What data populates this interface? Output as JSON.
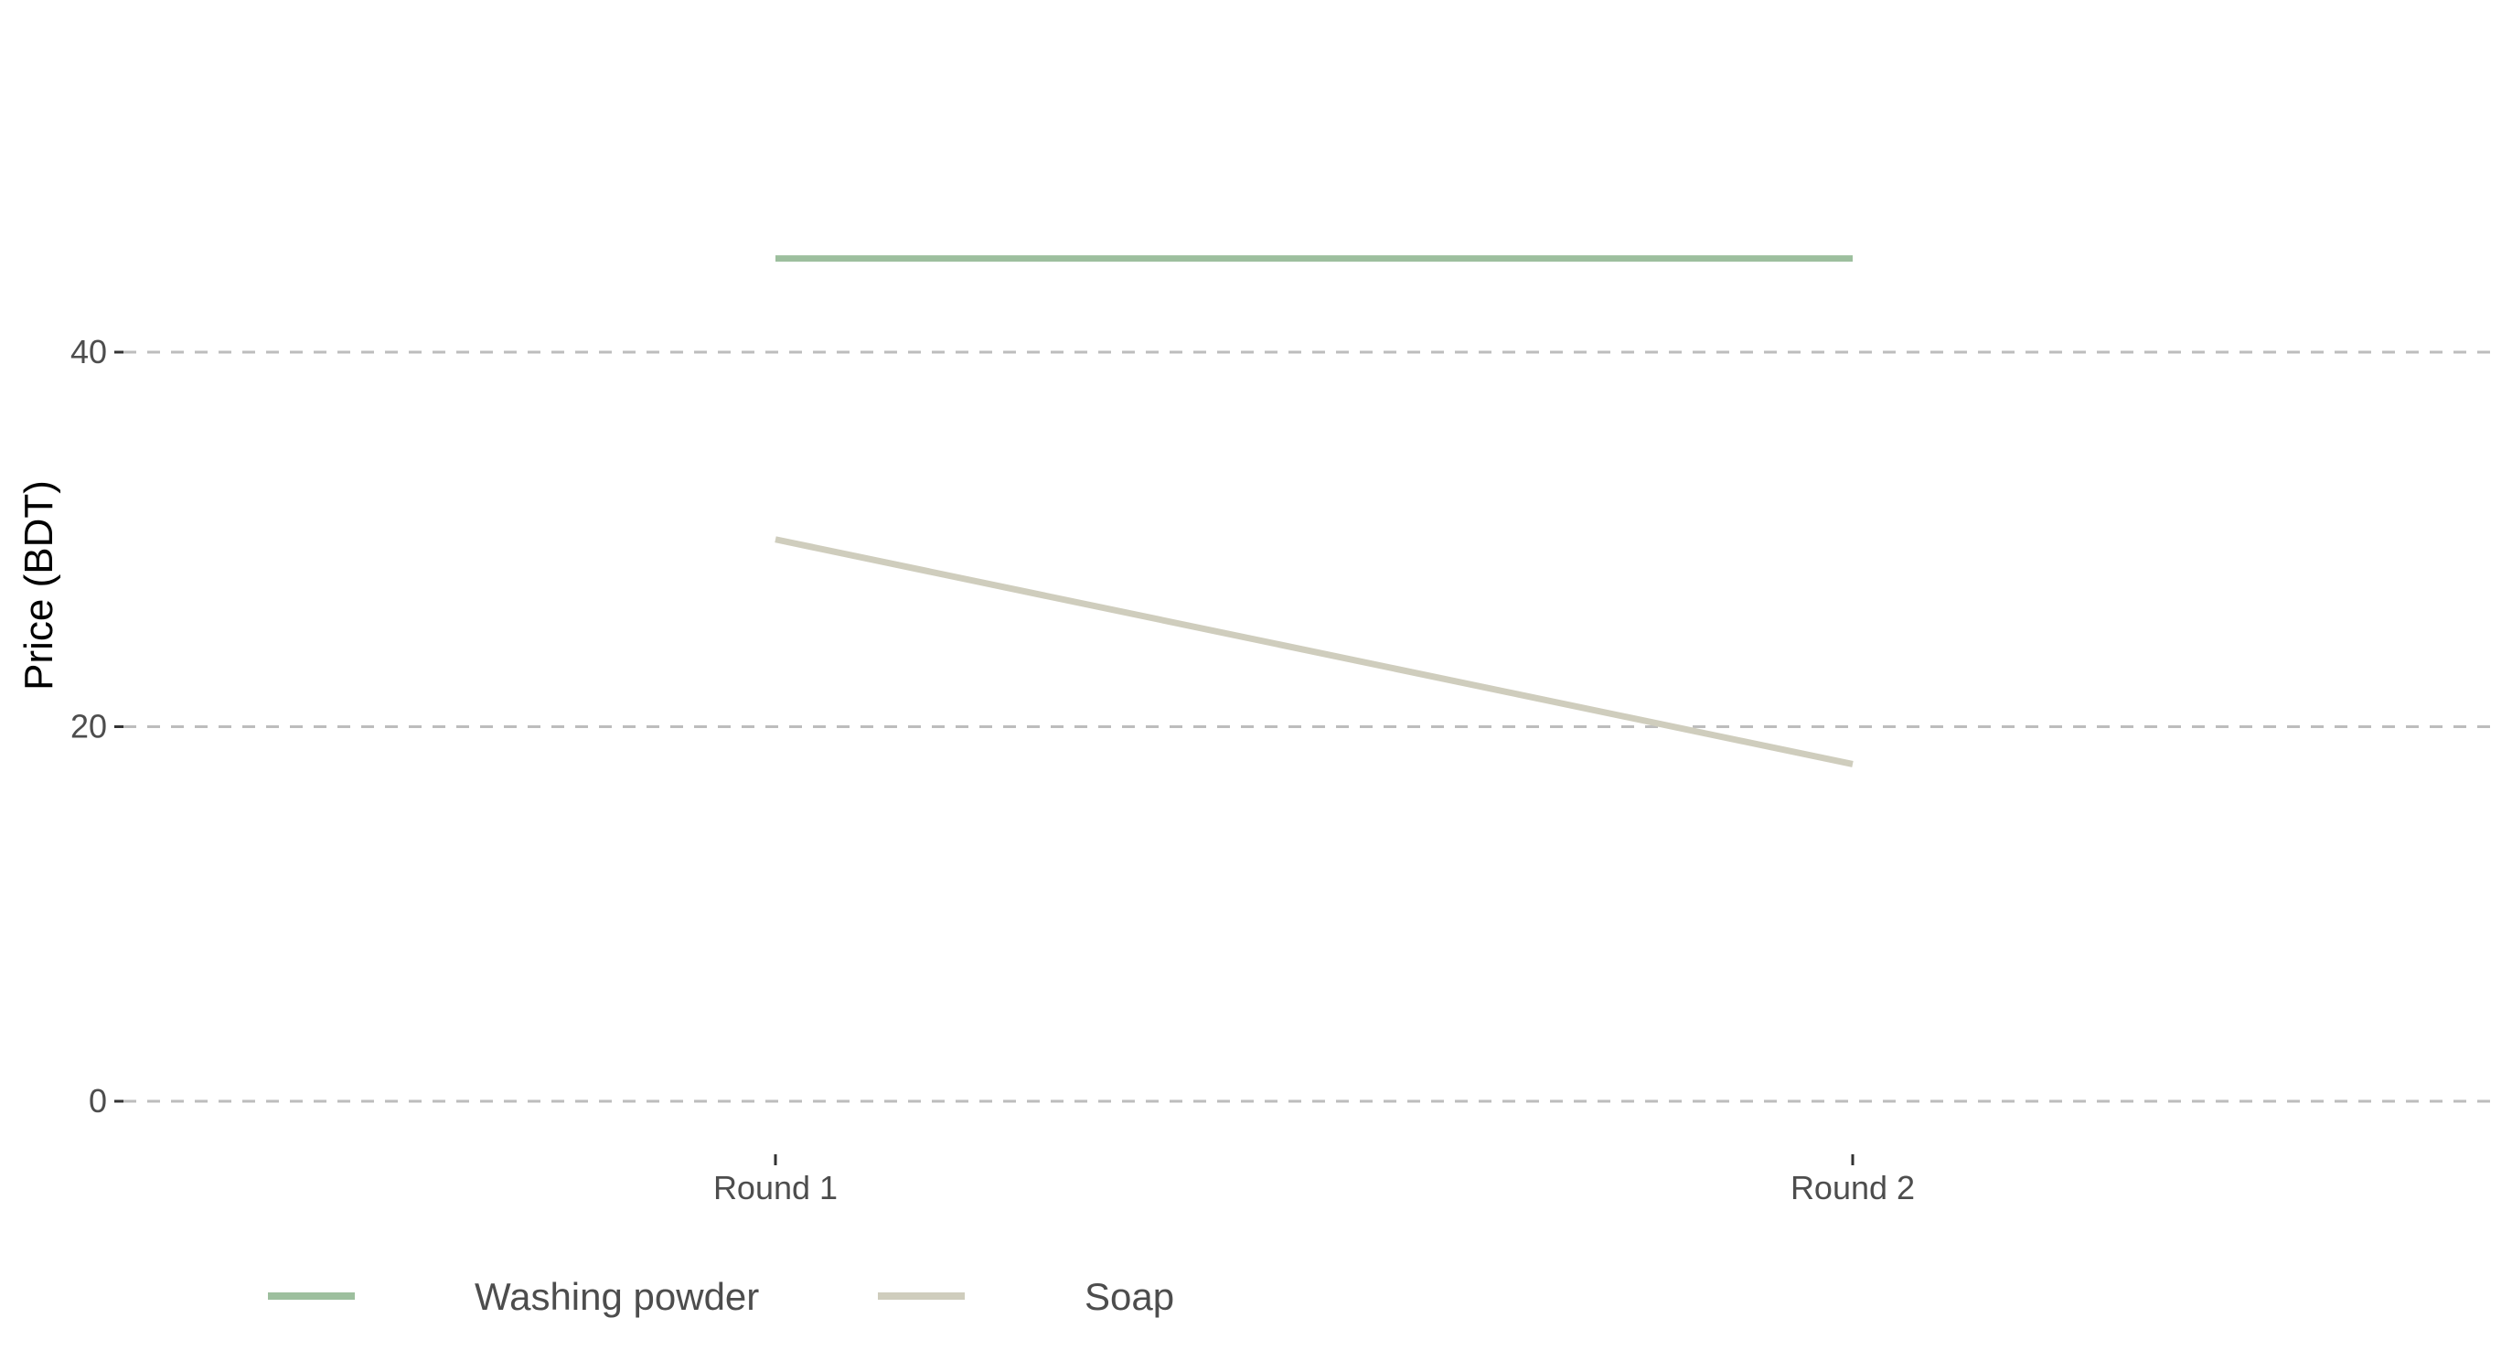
{
  "chart_data": {
    "type": "line",
    "ylabel": "Price (BDT)",
    "xlabel": "",
    "categories": [
      "Round 1",
      "Round 2"
    ],
    "ylim": [
      0,
      50
    ],
    "yticks": [
      0,
      20,
      40
    ],
    "grid": "horizontal dashed",
    "legend_position": "bottom",
    "series": [
      {
        "name": "Washing powder",
        "values": [
          45,
          45
        ],
        "color": "#9dbf9e"
      },
      {
        "name": "Soap",
        "values": [
          30,
          18
        ],
        "color": "#cfcdbd"
      }
    ]
  }
}
